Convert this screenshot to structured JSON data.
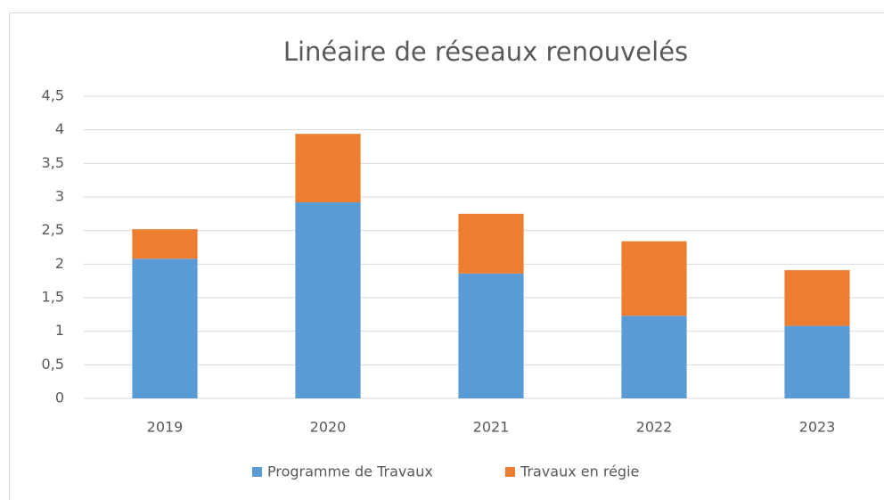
{
  "chart_data": {
    "type": "stacked_bar",
    "title": "Linéaire de réseaux renouvelés",
    "categories": [
      "2019",
      "2020",
      "2021",
      "2022",
      "2023"
    ],
    "series": [
      {
        "name": "Programme de Travaux",
        "color": "#5b9bd5",
        "values": [
          2.08,
          2.92,
          1.86,
          1.23,
          1.08
        ]
      },
      {
        "name": "Travaux en régie",
        "color": "#ed7d31",
        "values": [
          0.44,
          1.02,
          0.89,
          1.11,
          0.83
        ]
      }
    ],
    "ylim": [
      0,
      4.5
    ],
    "yticks": [
      0,
      {
        "value": 0.5,
        "label": "0,5"
      },
      1,
      {
        "value": 1.5,
        "label": "1,5"
      },
      2,
      {
        "value": 2.5,
        "label": "2,5"
      },
      3,
      {
        "value": 3.5,
        "label": "3,5"
      },
      4,
      {
        "value": 4.5,
        "label": "4,5"
      }
    ],
    "grid": true,
    "legend": "bottom"
  }
}
